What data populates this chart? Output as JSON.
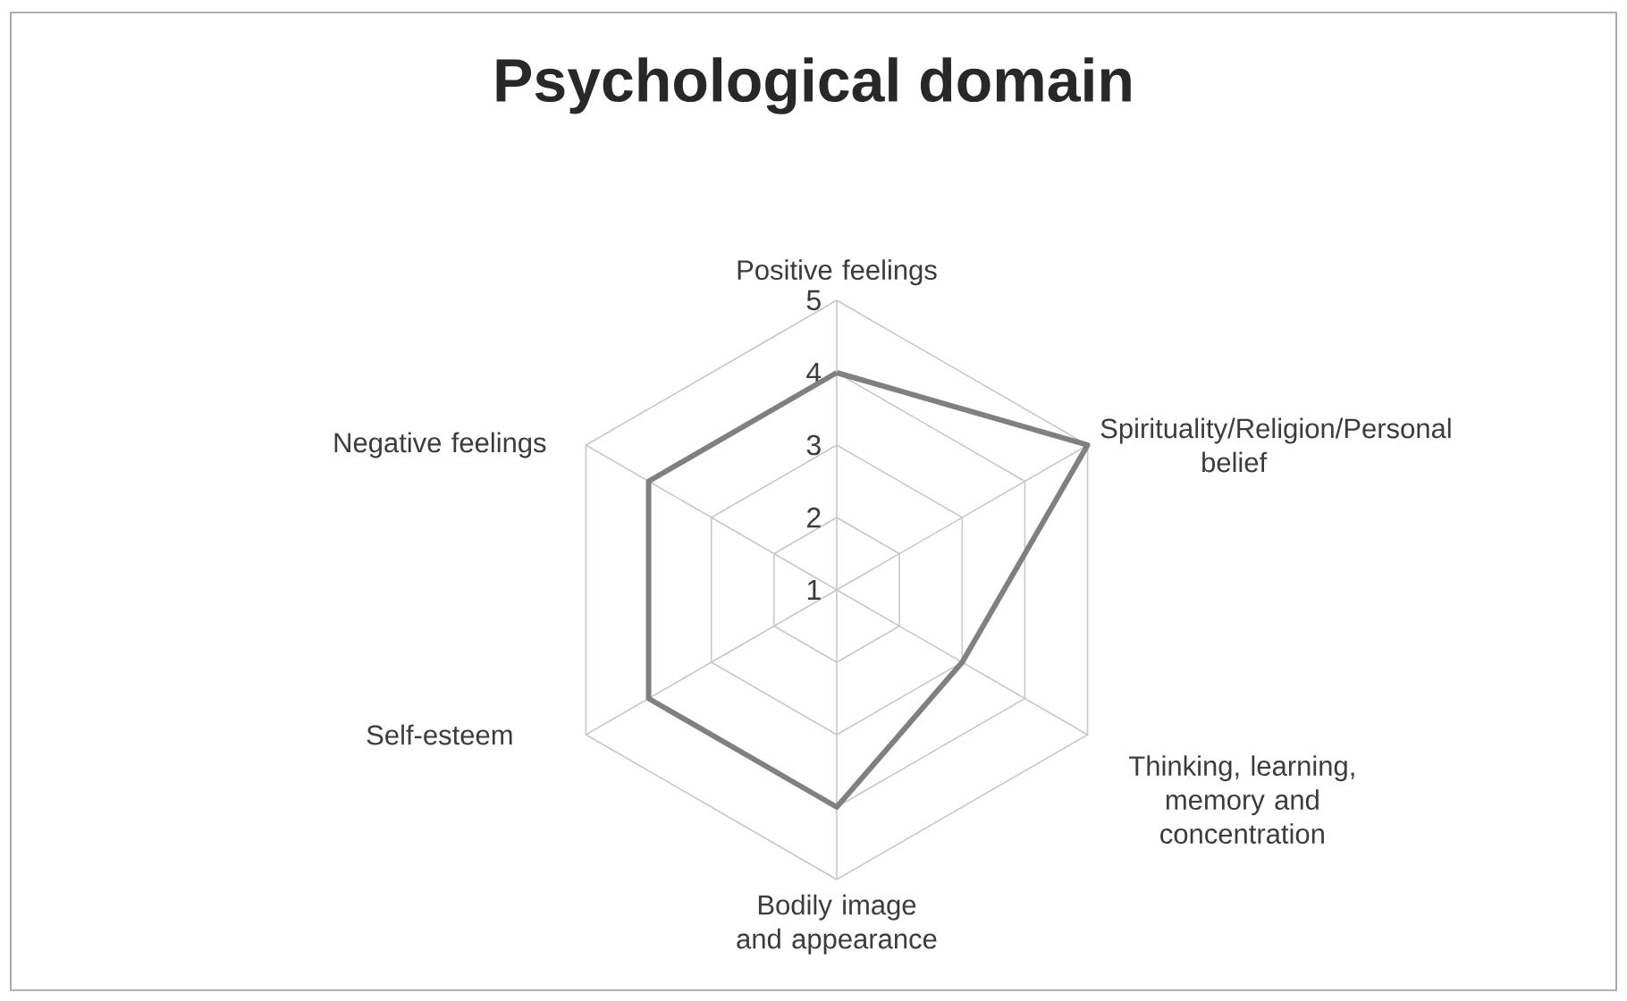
{
  "chart_data": {
    "type": "radar",
    "title": "Psychological domain",
    "categories": [
      "Positive feelings",
      "Spirituality/Religion/Personal belief",
      "Thinking, learning, memory and concentration",
      "Bodily image and appearance",
      "Self-esteem",
      "Negative feelings"
    ],
    "series": [
      {
        "color": "#808080",
        "values": [
          4,
          5,
          3,
          4,
          4,
          4
        ]
      }
    ],
    "ylim": [
      1,
      5
    ],
    "yticks": [
      1,
      2,
      3,
      4,
      5
    ],
    "grid": true,
    "marker": "none",
    "line_style": "solid"
  }
}
